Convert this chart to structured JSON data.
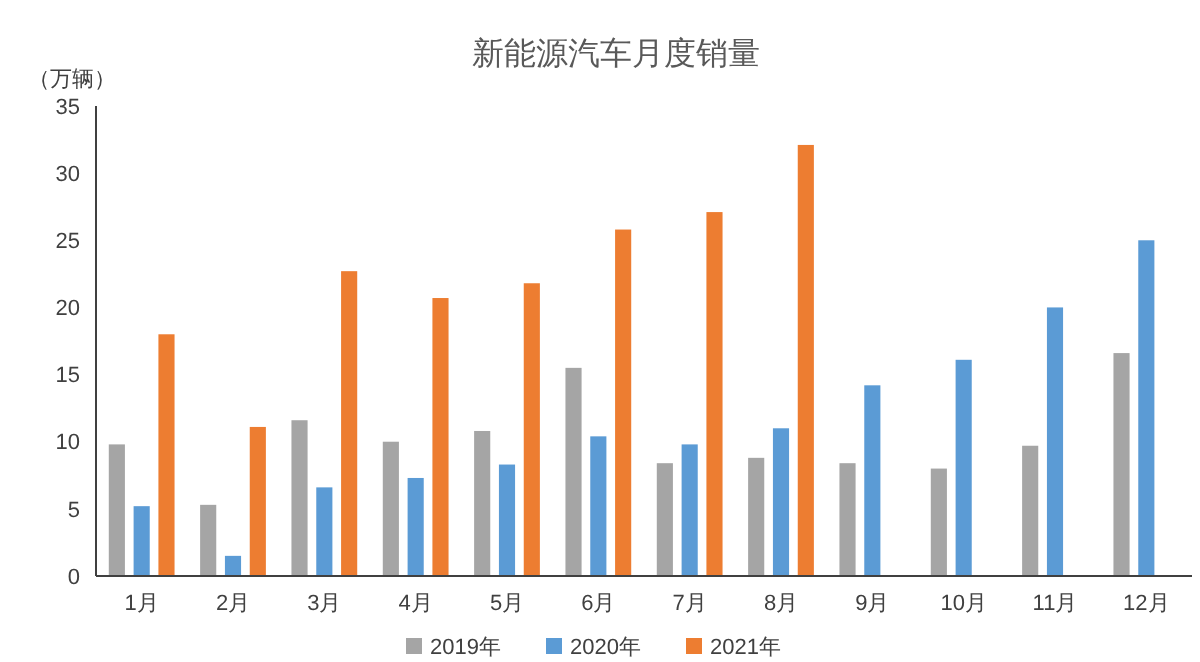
{
  "chart_data": {
    "type": "bar",
    "title": "新能源汽车月度销量",
    "ylabel": "（万辆）",
    "categories": [
      "1月",
      "2月",
      "3月",
      "4月",
      "5月",
      "6月",
      "7月",
      "8月",
      "9月",
      "10月",
      "11月",
      "12月"
    ],
    "series": [
      {
        "name": "2019年",
        "color": "#a5a5a5",
        "values": [
          9.8,
          5.3,
          11.6,
          10.0,
          10.8,
          15.5,
          8.4,
          8.8,
          8.4,
          8.0,
          9.7,
          16.6
        ]
      },
      {
        "name": "2020年",
        "color": "#5b9bd5",
        "values": [
          5.2,
          1.5,
          6.6,
          7.3,
          8.3,
          10.4,
          9.8,
          11.0,
          14.2,
          16.1,
          20.0,
          25.0
        ]
      },
      {
        "name": "2021年",
        "color": "#ed7d31",
        "values": [
          18.0,
          11.1,
          22.7,
          20.7,
          21.8,
          25.8,
          27.1,
          32.1,
          null,
          null,
          null,
          null
        ]
      }
    ],
    "ylim": [
      0,
      35
    ],
    "yticks": [
      0,
      5,
      10,
      15,
      20,
      25,
      30,
      35
    ],
    "grid": false,
    "legend": "bottom"
  }
}
